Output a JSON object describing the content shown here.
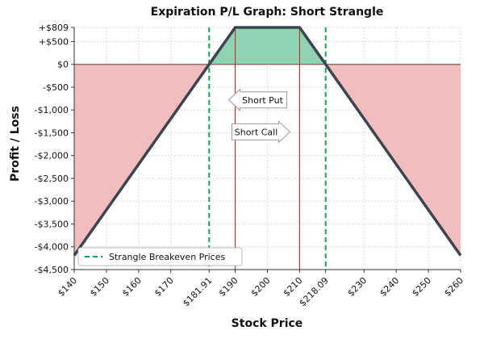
{
  "chart_data": {
    "type": "line",
    "title": "Expiration P/L Graph: Short Strangle",
    "xlabel": "Stock Price",
    "ylabel": "Profit / Loss",
    "xlim": [
      140,
      260
    ],
    "ylim": [
      -4500,
      809
    ],
    "x_ticks": [
      140,
      150,
      160,
      170,
      181.91,
      190,
      200,
      210,
      218.09,
      230,
      240,
      250,
      260
    ],
    "x_tick_labels": [
      "$140",
      "$150",
      "$160",
      "$170",
      "$181.91",
      "$190",
      "$200",
      "$210",
      "$218.09",
      "$230",
      "$240",
      "$250",
      "$260"
    ],
    "y_ticks": [
      809,
      500,
      0,
      -500,
      -1000,
      -1500,
      -2000,
      -2500,
      -3000,
      -3500,
      -4000,
      -4500
    ],
    "y_tick_labels": [
      "+$809",
      "+$500",
      "$0",
      "-$500",
      "-$1,000",
      "-$1,500",
      "-$2,000",
      "-$2,500",
      "-$3,000",
      "-$3,500",
      "-$4,000",
      "-$4,500"
    ],
    "series": [
      {
        "x": [
          140,
          190,
          210,
          260
        ],
        "y": [
          -4191,
          809,
          809,
          -4191
        ]
      }
    ],
    "strike_lines": [
      190,
      210
    ],
    "breakevens": [
      181.91,
      218.09
    ],
    "annotations": [
      {
        "label": "Short Put",
        "direction": "left",
        "x": 197,
        "y": -780
      },
      {
        "label": "Short Call",
        "direction": "right",
        "x": 198,
        "y": -1480
      }
    ],
    "legend": {
      "label": "Strangle Breakeven Prices",
      "position": "bottom-left"
    },
    "grid": true,
    "colors": {
      "line": "#3d4451",
      "profit_fill": "#8fd3b2",
      "loss_fill": "#f2bdbd",
      "strike": "#c0392b",
      "breakeven": "#1e9e5e",
      "zero_line": "#8b5a52"
    }
  }
}
